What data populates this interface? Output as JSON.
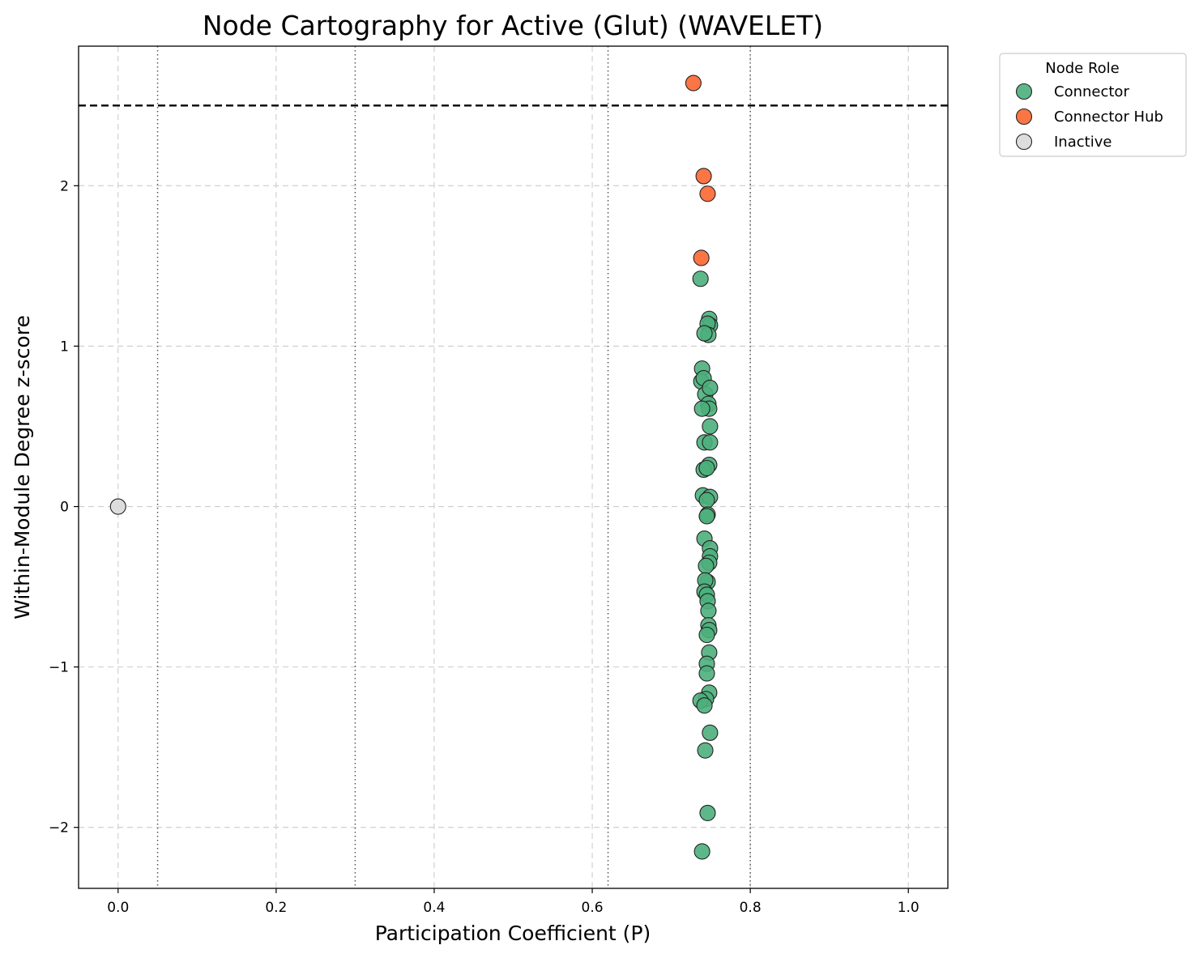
{
  "chart_data": {
    "type": "scatter",
    "title": "Node Cartography for Active (Glut) (WAVELET)",
    "xlabel": "Participation Coefficient (P)",
    "ylabel": "Within-Module Degree z-score",
    "xlim": [
      -0.05,
      1.05
    ],
    "ylim": [
      -2.38,
      2.87
    ],
    "xticks": [
      0.0,
      0.2,
      0.4,
      0.6,
      0.8,
      1.0
    ],
    "xtick_labels": [
      "0.0",
      "0.2",
      "0.4",
      "0.6",
      "0.8",
      "1.0"
    ],
    "yticks": [
      -2,
      -1,
      0,
      1,
      2
    ],
    "ytick_labels": [
      "−2",
      "−1",
      "0",
      "1",
      "2"
    ],
    "grid": true,
    "hline": {
      "y": 2.5,
      "style": "dashed",
      "color": "#000000"
    },
    "vlines": [
      {
        "x": 0.05,
        "style": "dotted",
        "color": "#555555"
      },
      {
        "x": 0.3,
        "style": "dotted",
        "color": "#555555"
      },
      {
        "x": 0.62,
        "style": "dotted",
        "color": "#555555"
      },
      {
        "x": 0.8,
        "style": "dotted",
        "color": "#555555"
      }
    ],
    "legend": {
      "title": "Node Role",
      "placement": "outside-top-right",
      "entries": [
        "Connector",
        "Connector Hub",
        "Inactive"
      ]
    },
    "series": [
      {
        "name": "Connector",
        "color": "#4daf7c",
        "points": [
          [
            0.737,
            1.42
          ],
          [
            0.748,
            1.17
          ],
          [
            0.749,
            1.13
          ],
          [
            0.746,
            1.14
          ],
          [
            0.747,
            1.07
          ],
          [
            0.742,
            1.08
          ],
          [
            0.739,
            0.86
          ],
          [
            0.738,
            0.78
          ],
          [
            0.741,
            0.8
          ],
          [
            0.743,
            0.7
          ],
          [
            0.749,
            0.74
          ],
          [
            0.747,
            0.64
          ],
          [
            0.748,
            0.61
          ],
          [
            0.739,
            0.61
          ],
          [
            0.749,
            0.5
          ],
          [
            0.742,
            0.4
          ],
          [
            0.749,
            0.4
          ],
          [
            0.748,
            0.26
          ],
          [
            0.741,
            0.23
          ],
          [
            0.745,
            0.24
          ],
          [
            0.74,
            0.07
          ],
          [
            0.749,
            0.06
          ],
          [
            0.745,
            0.04
          ],
          [
            0.746,
            -0.05
          ],
          [
            0.745,
            -0.06
          ],
          [
            0.742,
            -0.2
          ],
          [
            0.749,
            -0.26
          ],
          [
            0.749,
            -0.31
          ],
          [
            0.748,
            -0.35
          ],
          [
            0.744,
            -0.37
          ],
          [
            0.746,
            -0.47
          ],
          [
            0.743,
            -0.46
          ],
          [
            0.742,
            -0.53
          ],
          [
            0.745,
            -0.55
          ],
          [
            0.746,
            -0.59
          ],
          [
            0.747,
            -0.65
          ],
          [
            0.747,
            -0.74
          ],
          [
            0.748,
            -0.77
          ],
          [
            0.745,
            -0.8
          ],
          [
            0.748,
            -0.91
          ],
          [
            0.745,
            -0.98
          ],
          [
            0.745,
            -1.04
          ],
          [
            0.748,
            -1.16
          ],
          [
            0.744,
            -1.2
          ],
          [
            0.737,
            -1.21
          ],
          [
            0.742,
            -1.24
          ],
          [
            0.749,
            -1.41
          ],
          [
            0.743,
            -1.52
          ],
          [
            0.746,
            -1.91
          ],
          [
            0.739,
            -2.15
          ]
        ]
      },
      {
        "name": "Connector Hub",
        "color": "#fc6631",
        "points": [
          [
            0.728,
            2.64
          ],
          [
            0.741,
            2.06
          ],
          [
            0.746,
            1.95
          ],
          [
            0.738,
            1.55
          ]
        ]
      },
      {
        "name": "Inactive",
        "color": "#d9d9d9",
        "points": [
          [
            0.0,
            0.0
          ]
        ]
      }
    ]
  }
}
